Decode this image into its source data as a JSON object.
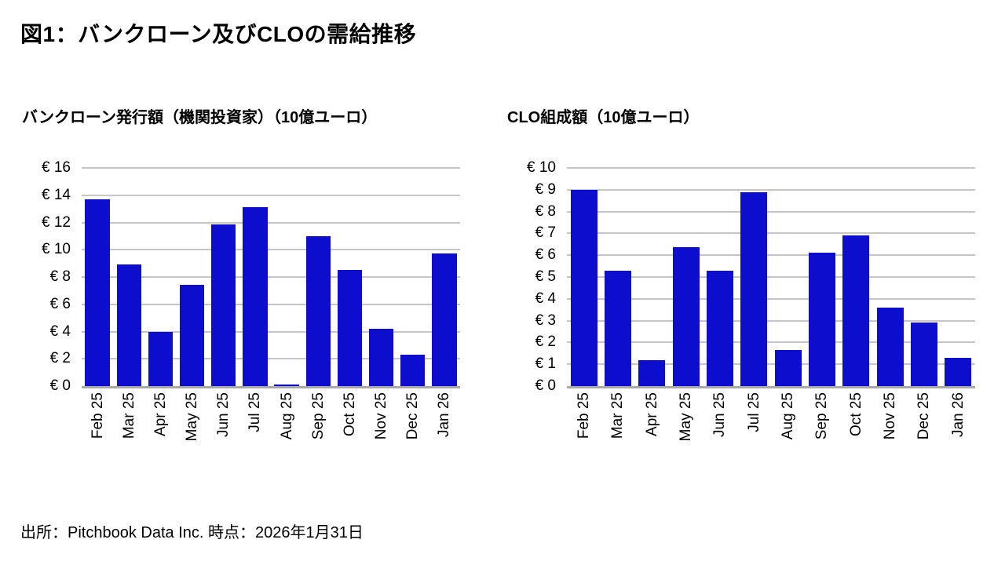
{
  "page": {
    "title": "図1：バンクローン及びCLOの需給推移",
    "footer": "出所：Pitchbook Data Inc. 時点：2026年1月31日"
  },
  "colors": {
    "bar": "#0d0dcd",
    "gridline": "#c6c6c6",
    "axis_line": "#a9a9a9",
    "text": "#000000",
    "background": "#ffffff"
  },
  "chart_data": [
    {
      "type": "bar",
      "title": "バンクローン発行額（機関投資家）（10億ユーロ）",
      "categories": [
        "Feb 25",
        "Mar 25",
        "Apr 25",
        "May 25",
        "Jun 25",
        "Jul 25",
        "Aug 25",
        "Sep 25",
        "Oct 25",
        "Nov 25",
        "Dec 25",
        "Jan 26"
      ],
      "values": [
        13.7,
        8.95,
        3.95,
        7.4,
        11.85,
        13.1,
        0.1,
        11.0,
        8.5,
        4.2,
        2.3,
        9.7
      ],
      "xlabel": "",
      "ylabel": "",
      "ylim": [
        0,
        16
      ],
      "ytick_step": 2,
      "ytick_labels": [
        "€ 0",
        "€ 2",
        "€ 4",
        "€ 6",
        "€ 8",
        "€ 10",
        "€ 12",
        "€ 14",
        "€ 16"
      ],
      "value_prefix": "€",
      "grid": true,
      "legend": false
    },
    {
      "type": "bar",
      "title": "CLO組成額（10億ユーロ）",
      "categories": [
        "Feb 25",
        "Mar 25",
        "Apr 25",
        "May 25",
        "Jun 25",
        "Jul 25",
        "Aug 25",
        "Sep 25",
        "Oct 25",
        "Nov 25",
        "Dec 25",
        "Jan 26"
      ],
      "values": [
        9.0,
        5.3,
        1.2,
        6.35,
        5.3,
        8.9,
        1.65,
        6.1,
        6.9,
        3.6,
        2.9,
        1.3
      ],
      "xlabel": "",
      "ylabel": "",
      "ylim": [
        0,
        10
      ],
      "ytick_step": 1,
      "ytick_labels": [
        "€ 0",
        "€ 1",
        "€ 2",
        "€ 3",
        "€ 4",
        "€ 5",
        "€ 6",
        "€ 7",
        "€ 8",
        "€ 9",
        "€ 10"
      ],
      "value_prefix": "€",
      "grid": true,
      "legend": false
    }
  ]
}
